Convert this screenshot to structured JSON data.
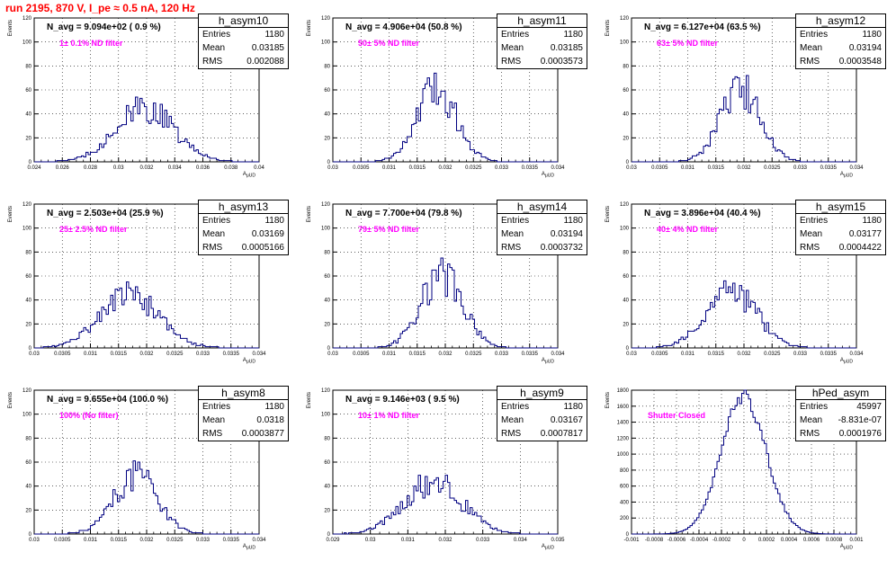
{
  "run_title": "run 2195,   870 V, I_pe ≈ 0.5 nA, 120 Hz",
  "y_axis_label": "Events",
  "x_axis_label": "A",
  "x_axis_sub": "μUD",
  "chart_data": [
    {
      "type": "bar",
      "hist_name": "h_asym10",
      "n_avg": "N_avg = 9.094e+02 ( 0.9 %)",
      "filter": "1± 0.1% ND filter",
      "entries": "1180",
      "mean": "0.03185",
      "rms": "0.002088",
      "xlim": [
        0.024,
        0.04
      ],
      "ylim": [
        0,
        120
      ],
      "x_ticks": [
        "0.024",
        "0.026",
        "0.028",
        "0.03",
        "0.032",
        "0.034",
        "0.036",
        "0.038",
        "0.04"
      ],
      "y_ticks": [
        "0",
        "20",
        "40",
        "60",
        "80",
        "100",
        "120"
      ],
      "mean_value": 0.03185,
      "rms_value": 0.002088,
      "peak": 44
    },
    {
      "type": "bar",
      "hist_name": "h_asym11",
      "n_avg": "N_avg = 4.906e+04 (50.8 %)",
      "filter": "50± 5% ND filter",
      "entries": "1180",
      "mean": "0.03185",
      "rms": "0.0003573",
      "xlim": [
        0.03,
        0.034
      ],
      "ylim": [
        0,
        120
      ],
      "x_ticks": [
        "0.03",
        "0.0305",
        "0.031",
        "0.0315",
        "0.032",
        "0.0325",
        "0.033",
        "0.0335",
        "0.034"
      ],
      "y_ticks": [
        "0",
        "20",
        "40",
        "60",
        "80",
        "100",
        "120"
      ],
      "mean_value": 0.03185,
      "rms_value": 0.0003573,
      "peak": 60
    },
    {
      "type": "bar",
      "hist_name": "h_asym12",
      "n_avg": "N_avg = 6.127e+04 (63.5 %)",
      "filter": "63± 5% ND filter",
      "entries": "1180",
      "mean": "0.03194",
      "rms": "0.0003548",
      "xlim": [
        0.03,
        0.034
      ],
      "ylim": [
        0,
        120
      ],
      "x_ticks": [
        "0.03",
        "0.0305",
        "0.031",
        "0.0315",
        "0.032",
        "0.0325",
        "0.033",
        "0.0335",
        "0.034"
      ],
      "y_ticks": [
        "0",
        "20",
        "40",
        "60",
        "80",
        "100",
        "120"
      ],
      "mean_value": 0.03194,
      "rms_value": 0.0003548,
      "peak": 60
    },
    {
      "type": "bar",
      "hist_name": "h_asym13",
      "n_avg": "N_avg = 2.503e+04 (25.9 %)",
      "filter": "25± 2.5% ND filter",
      "entries": "1180",
      "mean": "0.03169",
      "rms": "0.0005166",
      "xlim": [
        0.03,
        0.034
      ],
      "ylim": [
        0,
        120
      ],
      "x_ticks": [
        "0.03",
        "0.0305",
        "0.031",
        "0.0315",
        "0.032",
        "0.0325",
        "0.033",
        "0.0335",
        "0.034"
      ],
      "y_ticks": [
        "0",
        "20",
        "40",
        "60",
        "80",
        "100",
        "120"
      ],
      "mean_value": 0.03169,
      "rms_value": 0.0005166,
      "peak": 45
    },
    {
      "type": "bar",
      "hist_name": "h_asym14",
      "n_avg": "N_avg = 7.700e+04 (79.8 %)",
      "filter": "79± 5% ND filter",
      "entries": "1180",
      "mean": "0.03194",
      "rms": "0.0003732",
      "xlim": [
        0.03,
        0.034
      ],
      "ylim": [
        0,
        120
      ],
      "x_ticks": [
        "0.03",
        "0.0305",
        "0.031",
        "0.0315",
        "0.032",
        "0.0325",
        "0.033",
        "0.0335",
        "0.034"
      ],
      "y_ticks": [
        "0",
        "20",
        "40",
        "60",
        "80",
        "100",
        "120"
      ],
      "mean_value": 0.03194,
      "rms_value": 0.0003732,
      "peak": 60
    },
    {
      "type": "bar",
      "hist_name": "h_asym15",
      "n_avg": "N_avg = 3.896e+04 (40.4 %)",
      "filter": "40± 4% ND filter",
      "entries": "1180",
      "mean": "0.03177",
      "rms": "0.0004422",
      "xlim": [
        0.03,
        0.034
      ],
      "ylim": [
        0,
        120
      ],
      "x_ticks": [
        "0.03",
        "0.0305",
        "0.031",
        "0.0315",
        "0.032",
        "0.0325",
        "0.033",
        "0.0335",
        "0.034"
      ],
      "y_ticks": [
        "0",
        "20",
        "40",
        "60",
        "80",
        "100",
        "120"
      ],
      "mean_value": 0.03177,
      "rms_value": 0.0004422,
      "peak": 49
    },
    {
      "type": "bar",
      "hist_name": "h_asym8",
      "n_avg": "N_avg = 9.655e+04 (100.0 %)",
      "filter": "100% (No filter)",
      "entries": "1180",
      "mean": "0.0318",
      "rms": "0.0003877",
      "xlim": [
        0.03,
        0.034
      ],
      "ylim": [
        0,
        120
      ],
      "x_ticks": [
        "0.03",
        "0.0305",
        "0.031",
        "0.0315",
        "0.032",
        "0.0325",
        "0.033",
        "0.0335",
        "0.034"
      ],
      "y_ticks": [
        "0",
        "20",
        "40",
        "60",
        "80",
        "100",
        "120"
      ],
      "mean_value": 0.0318,
      "rms_value": 0.0003877,
      "peak": 49
    },
    {
      "type": "bar",
      "hist_name": "h_asym9",
      "n_avg": "N_avg = 9.146e+03 ( 9.5 %)",
      "filter": "10± 1% ND filter",
      "entries": "1180",
      "mean": "0.03167",
      "rms": "0.0007817",
      "xlim": [
        0.029,
        0.035
      ],
      "ylim": [
        0,
        120
      ],
      "x_ticks": [
        "0.029",
        "0.03",
        "0.031",
        "0.032",
        "0.033",
        "0.034",
        "0.035"
      ],
      "y_ticks": [
        "0",
        "20",
        "40",
        "60",
        "80",
        "100",
        "120"
      ],
      "mean_value": 0.03167,
      "rms_value": 0.0007817,
      "peak": 43
    },
    {
      "type": "bar",
      "hist_name": "hPed_asym",
      "n_avg": "",
      "filter": "Shutter Closed",
      "entries": "45997",
      "mean": "-8.831e-07",
      "rms": "0.0001976",
      "xlim": [
        -0.001,
        0.001
      ],
      "ylim": [
        0,
        1800
      ],
      "x_ticks": [
        "-0.001",
        "-0.0008",
        "-0.0006",
        "-0.0004",
        "-0.0002",
        "0",
        "0.0002",
        "0.0004",
        "0.0006",
        "0.0008",
        "0.001"
      ],
      "y_ticks": [
        "0",
        "200",
        "400",
        "600",
        "800",
        "1000",
        "1200",
        "1400",
        "1600",
        "1800"
      ],
      "mean_value": -8.831e-07,
      "rms_value": 0.0001976,
      "peak": 1720
    }
  ]
}
